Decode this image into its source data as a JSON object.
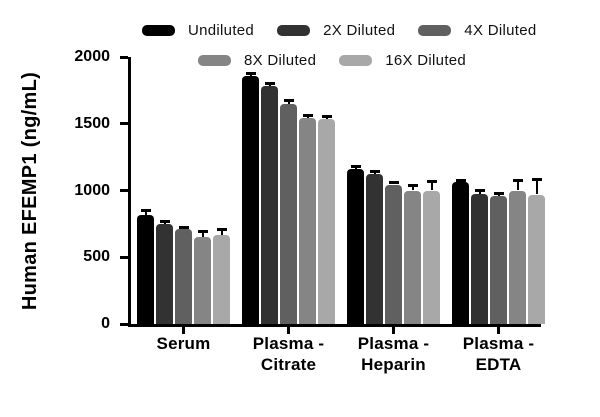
{
  "chart_data": {
    "type": "bar",
    "title": "",
    "ylabel": "Human EFEMP1 (ng/mL)",
    "xlabel": "",
    "ylim": [
      0,
      2000
    ],
    "yticks": [
      0,
      500,
      1000,
      1500,
      2000
    ],
    "grid": false,
    "legend_position": "top",
    "categories": [
      "Serum",
      "Plasma - Citrate",
      "Plasma - Heparin",
      "Plasma - EDTA"
    ],
    "category_label_lines": [
      [
        "Serum"
      ],
      [
        "Plasma -",
        "Citrate"
      ],
      [
        "Plasma -",
        "Heparin"
      ],
      [
        "Plasma -",
        "EDTA"
      ]
    ],
    "series": [
      {
        "name": "Undiluted",
        "color": "#000000",
        "values": [
          820,
          1860,
          1160,
          1065
        ],
        "errors": [
          30,
          15,
          20,
          10
        ]
      },
      {
        "name": "2X Diluted",
        "color": "#323232",
        "values": [
          750,
          1780,
          1125,
          975
        ],
        "errors": [
          20,
          25,
          20,
          25
        ]
      },
      {
        "name": "4X Diluted",
        "color": "#606060",
        "values": [
          710,
          1650,
          1045,
          960
        ],
        "errors": [
          15,
          25,
          15,
          15
        ]
      },
      {
        "name": "8X Diluted",
        "color": "#858585",
        "values": [
          655,
          1540,
          1000,
          1000
        ],
        "errors": [
          35,
          20,
          40,
          75
        ]
      },
      {
        "name": "16X Diluted",
        "color": "#a8a8a8",
        "values": [
          670,
          1535,
          1000,
          970
        ],
        "errors": [
          40,
          20,
          70,
          110
        ]
      }
    ],
    "legend_rows": [
      [
        0,
        1,
        2
      ],
      [
        3,
        4
      ]
    ]
  }
}
